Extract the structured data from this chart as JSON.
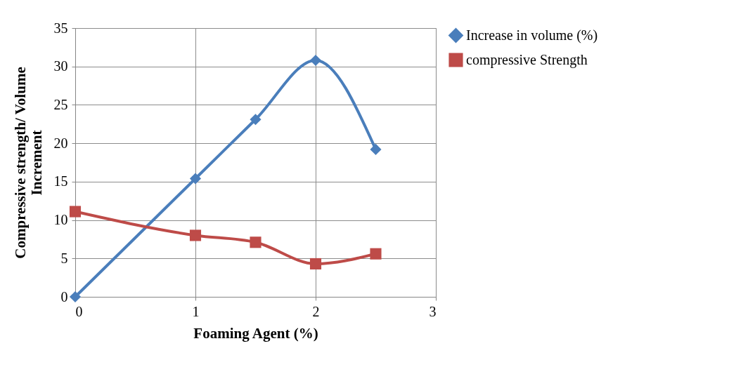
{
  "chart_data": {
    "type": "line",
    "xlabel": "Foaming Agent (%)",
    "ylabel": "Compressive strength/ Volume Increment",
    "x": [
      0,
      1,
      1.5,
      2,
      2.5
    ],
    "xlim": [
      0,
      3
    ],
    "xticks": [
      0,
      1,
      2,
      3
    ],
    "ylim": [
      0,
      35
    ],
    "yticks": [
      0,
      5,
      10,
      15,
      20,
      25,
      30,
      35
    ],
    "grid": true,
    "legend": "right",
    "series": [
      {
        "name": "Increase in volume (%)",
        "color": "#4a7ebb",
        "marker": "diamond",
        "values": [
          0,
          15.4,
          23.1,
          30.8,
          19.2
        ]
      },
      {
        "name": "compressive Strength",
        "color": "#be4b48",
        "marker": "square",
        "values": [
          11.1,
          8,
          7.1,
          4.3,
          5.6
        ]
      }
    ]
  }
}
